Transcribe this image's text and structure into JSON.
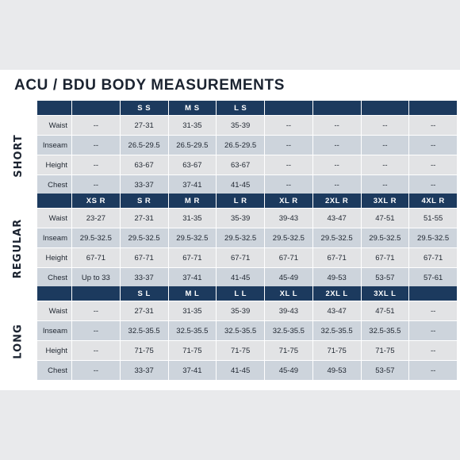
{
  "title": "ACU / BDU BODY MEASUREMENTS",
  "sections": [
    {
      "label": "SHORT",
      "headers": [
        "",
        "S S",
        "M S",
        "L S",
        "",
        "",
        "",
        ""
      ],
      "rows": [
        {
          "label": "Waist",
          "values": [
            "--",
            "27-31",
            "31-35",
            "35-39",
            "--",
            "--",
            "--",
            "--"
          ]
        },
        {
          "label": "Inseam",
          "values": [
            "--",
            "26.5-29.5",
            "26.5-29.5",
            "26.5-29.5",
            "--",
            "--",
            "--",
            "--"
          ]
        },
        {
          "label": "Height",
          "values": [
            "--",
            "63-67",
            "63-67",
            "63-67",
            "--",
            "--",
            "--",
            "--"
          ]
        },
        {
          "label": "Chest",
          "values": [
            "--",
            "33-37",
            "37-41",
            "41-45",
            "--",
            "--",
            "--",
            "--"
          ]
        }
      ]
    },
    {
      "label": "REGULAR",
      "headers": [
        "XS R",
        "S R",
        "M R",
        "L R",
        "XL R",
        "2XL R",
        "3XL R",
        "4XL R"
      ],
      "rows": [
        {
          "label": "Waist",
          "values": [
            "23-27",
            "27-31",
            "31-35",
            "35-39",
            "39-43",
            "43-47",
            "47-51",
            "51-55"
          ]
        },
        {
          "label": "Inseam",
          "values": [
            "29.5-32.5",
            "29.5-32.5",
            "29.5-32.5",
            "29.5-32.5",
            "29.5-32.5",
            "29.5-32.5",
            "29.5-32.5",
            "29.5-32.5"
          ]
        },
        {
          "label": "Height",
          "values": [
            "67-71",
            "67-71",
            "67-71",
            "67-71",
            "67-71",
            "67-71",
            "67-71",
            "67-71"
          ]
        },
        {
          "label": "Chest",
          "values": [
            "Up to 33",
            "33-37",
            "37-41",
            "41-45",
            "45-49",
            "49-53",
            "53-57",
            "57-61"
          ]
        }
      ]
    },
    {
      "label": "LONG",
      "headers": [
        "",
        "S L",
        "M L",
        "L L",
        "XL L",
        "2XL L",
        "3XL L",
        ""
      ],
      "rows": [
        {
          "label": "Waist",
          "values": [
            "--",
            "27-31",
            "31-35",
            "35-39",
            "39-43",
            "43-47",
            "47-51",
            "--"
          ]
        },
        {
          "label": "Inseam",
          "values": [
            "--",
            "32.5-35.5",
            "32.5-35.5",
            "32.5-35.5",
            "32.5-35.5",
            "32.5-35.5",
            "32.5-35.5",
            "--"
          ]
        },
        {
          "label": "Height",
          "values": [
            "--",
            "71-75",
            "71-75",
            "71-75",
            "71-75",
            "71-75",
            "71-75",
            "--"
          ]
        },
        {
          "label": "Chest",
          "values": [
            "--",
            "33-37",
            "37-41",
            "41-45",
            "45-49",
            "49-53",
            "53-57",
            "--"
          ]
        }
      ]
    }
  ]
}
